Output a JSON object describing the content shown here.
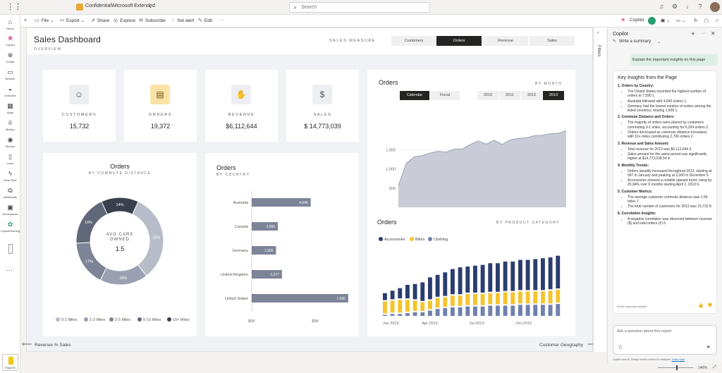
{
  "topbar": {
    "file_title": "Confidential\\Microsoft Extended",
    "search_placeholder": "Search"
  },
  "leftnav": {
    "items": [
      {
        "label": "Home",
        "icon": "home-icon"
      },
      {
        "label": "Copilot",
        "icon": "copilot-icon"
      },
      {
        "label": "Create",
        "icon": "plus-icon"
      },
      {
        "label": "Browse",
        "icon": "folder-icon"
      },
      {
        "label": "OneLake",
        "icon": "onelake-icon"
      },
      {
        "label": "Apps",
        "icon": "apps-icon"
      },
      {
        "label": "Metrics",
        "icon": "trophy-icon"
      },
      {
        "label": "Monitor",
        "icon": "monitor-icon"
      },
      {
        "label": "Learn",
        "icon": "book-icon"
      },
      {
        "label": "Real-Time",
        "icon": "lightning-icon"
      },
      {
        "label": "Workloads",
        "icon": "workloads-icon"
      },
      {
        "label": "Workspaces",
        "icon": "workspaces-icon"
      },
      {
        "label": "CopilotDashing",
        "icon": "dashboard-icon"
      }
    ],
    "power_bi_label": "Power BI"
  },
  "toolbar": {
    "file": "File",
    "export": "Export",
    "share": "Share",
    "explore": "Explore",
    "subscribe": "Subscribe",
    "set_alert": "Set alert",
    "edit": "Edit",
    "more": "···",
    "copilot": "Copilot"
  },
  "dashboard": {
    "title": "Sales Dashboard",
    "subtitle": "OVERVIEW",
    "measure_label": "SALES MEASURE",
    "measure_tabs": [
      "Customers",
      "Orders",
      "Revenue",
      "Sales"
    ],
    "active_measure": "Orders",
    "kpis": [
      {
        "label": "CUSTOMERS",
        "value": "15,732",
        "icon": "person-icon"
      },
      {
        "label": "ORDERS",
        "value": "19,372",
        "icon": "document-icon"
      },
      {
        "label": "REVENUE",
        "value": "$6,112,644",
        "icon": "hand-coin-icon"
      },
      {
        "label": "SALES",
        "value": "$ 14,773,039",
        "icon": "dollar-icon"
      }
    ],
    "orders_month": {
      "title": "Orders",
      "subtitle": "BY MONTH",
      "calendar_buttons": [
        "Calendar",
        "Fiscal"
      ],
      "active_calendar": "Calendar",
      "years": [
        "2010",
        "2011",
        "2012",
        "2013"
      ],
      "active_year": "2013"
    },
    "commute": {
      "title": "Orders",
      "subtitle": "BY COMMUTE DISTANCE",
      "center_label_1": "AVG CARS",
      "center_label_2": "OWNED",
      "center_value": "1.5"
    },
    "country": {
      "title": "Orders",
      "subtitle": "BY COUNTRY"
    },
    "category": {
      "title": "Orders",
      "subtitle": "BY PRODUCT CATEGORY"
    },
    "footer_left": "Revenue % Sales",
    "footer_right": "Customer Geography"
  },
  "filters_label": "Filters",
  "copilot": {
    "title": "Copilot",
    "write_summary": "Write a summary",
    "prompt": "Explain the important insights on this page",
    "answer_title": "Key Insights from the Page",
    "sections": [
      {
        "heading": "1. Orders by Country:",
        "bullets": [
          "The United States recorded the highest number of orders at 7,590 1.",
          "Australia followed with 4,640 orders 1.",
          "Germany had the lowest number of orders among the listed countries, totaling 1,909 1."
        ]
      },
      {
        "heading": "2. Commute Distance and Orders:",
        "bullets": [
          "The majority of orders were placed by customers commuting 0-1 miles, accounting for 6,324 orders 2.",
          "Orders decreased as commute distance increased, with 10+ miles contributing 2,790 orders 2."
        ]
      },
      {
        "heading": "3. Revenue and Sales Amount:",
        "bullets": [
          "Total revenue for 2013 was $6,112,644 3.",
          "Sales amount for the same period was significantly higher at $14,773,038.54 4."
        ]
      },
      {
        "heading": "4. Monthly Trends:",
        "bullets": [
          "Orders steadily increased throughout 2013, starting at 567 in January and peaking at 2,000 in December 5.",
          "Accessories showed a notable upward trend, rising by 25.94% over 6 months starting April 1, 2013 6."
        ]
      },
      {
        "heading": "5. Customer Metrics:",
        "bullets": [
          "The average customer commute distance was 1.54 miles 7.",
          "The total number of customers for 2013 was 15,732 8."
        ]
      },
      {
        "heading": "6. Correlation Insights:",
        "bullets": [
          "A negative correlation was observed between revenue ($) and total orders (#) 6."
        ]
      }
    ],
    "helpful": "Is this response helpful?",
    "input_placeholder": "Ask a question about this report",
    "disclaimer": "Copilot uses AI. Always review content for mistakes.",
    "learn_more": "Learn more",
    "zoom": "146%"
  },
  "chart_data": [
    {
      "type": "area",
      "title": "Orders",
      "subtitle": "BY MONTH",
      "x_tick_labels": [
        "Jan 2013",
        "Apr 2013",
        "Jul 2013",
        "Oct 2013"
      ],
      "y_tick_labels": [
        "1,500",
        "1,000",
        "500"
      ],
      "ylim": [
        0,
        2300
      ],
      "x": [
        1,
        2,
        3,
        4,
        5,
        6,
        7,
        8,
        9,
        10,
        11,
        12,
        13,
        14,
        15,
        16,
        17,
        18,
        19,
        20,
        21,
        22
      ],
      "values": [
        567,
        1150,
        1320,
        1350,
        1420,
        1460,
        1440,
        1520,
        1520,
        1640,
        1730,
        1650,
        1750,
        1640,
        1760,
        1800,
        1810,
        1870,
        1880,
        1920,
        1930,
        2000
      ]
    },
    {
      "type": "pie",
      "title": "Orders",
      "subtitle": "BY COMMUTE DISTANCE",
      "categories": [
        "0-1 Miles",
        "1-2 Miles",
        "2-5 Miles",
        "5-10 Miles",
        "10+ Miles"
      ],
      "values": [
        33,
        18,
        17,
        19,
        14
      ],
      "labels": [
        "33%",
        "18%",
        "17%",
        "19%",
        "14%"
      ],
      "colors": [
        "#b8bcc8",
        "#9aa0b1",
        "#7d8498",
        "#606779",
        "#3a3f4c"
      ]
    },
    {
      "type": "bar",
      "title": "Orders",
      "subtitle": "BY COUNTRY",
      "categories": [
        "Australia",
        "Canada",
        "Germany",
        "United Kingdom",
        "United States"
      ],
      "values": [
        4640,
        2056,
        1909,
        2377,
        7590
      ],
      "labels": [
        "4,640",
        "2,056",
        "1,909",
        "2,377",
        "7,590"
      ],
      "x_tick_labels": [
        "$0K",
        "$5K"
      ],
      "xlim": [
        0,
        8000
      ]
    },
    {
      "type": "area",
      "title": "Orders",
      "subtitle": "BY PRODUCT CATEGORY",
      "x_tick_labels": [
        "Jan 2013",
        "Apr 2013",
        "Jul 2013",
        "Oct 2013"
      ],
      "legend": [
        "Accessories",
        "Bikes",
        "Clothing"
      ],
      "colors": {
        "Accessories": "#2b3d6e",
        "Bikes": "#f5c42c",
        "Clothing": "#6f80ad"
      },
      "series": [
        {
          "name": "Accessories",
          "values": [
            10,
            12,
            14,
            18,
            20,
            24,
            28,
            28,
            30,
            32,
            34,
            33,
            34,
            35,
            36,
            36,
            37,
            37,
            38,
            38,
            39,
            40,
            40,
            41
          ]
        },
        {
          "name": "Bikes",
          "values": [
            16,
            16,
            17,
            16,
            14,
            12,
            12,
            13,
            13,
            14,
            14,
            15,
            15,
            15,
            15,
            15,
            16,
            16,
            16,
            16,
            16,
            16,
            17,
            17
          ]
        },
        {
          "name": "Clothing",
          "values": [
            3,
            4,
            4,
            5,
            6,
            6,
            8,
            10,
            11,
            12,
            12,
            13,
            13,
            13,
            14,
            14,
            14,
            14,
            15,
            15,
            15,
            15,
            15,
            16
          ]
        }
      ]
    }
  ]
}
